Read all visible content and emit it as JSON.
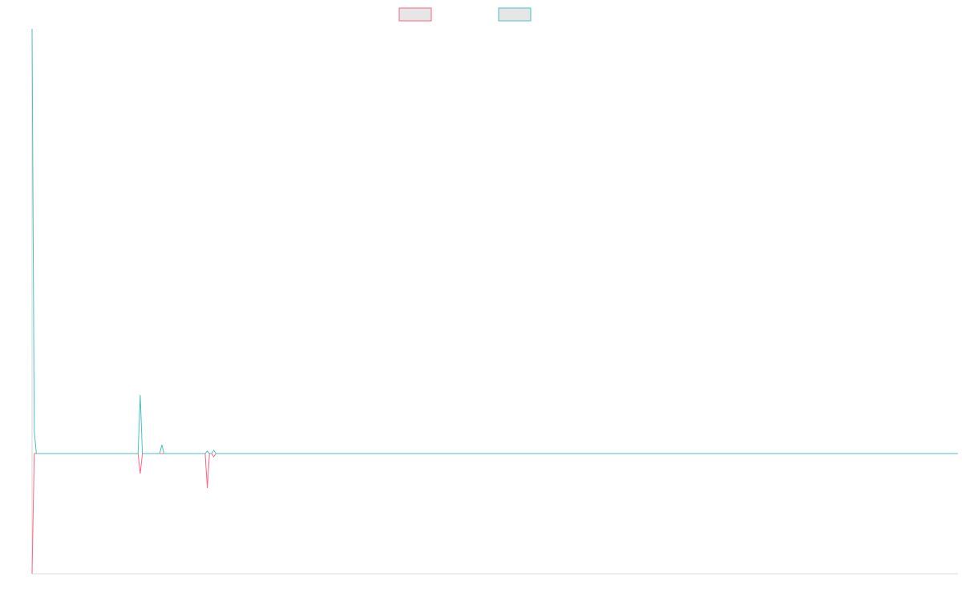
{
  "chart_data": {
    "type": "line",
    "x": [
      0,
      1,
      2,
      49,
      50,
      51,
      59,
      60,
      61,
      80,
      81,
      82,
      83,
      84,
      85,
      428
    ],
    "series": [
      {
        "color": "#ff6384",
        "values": [
          -150,
          0,
          0,
          0,
          -25,
          0,
          0,
          0,
          0,
          0,
          -43,
          0,
          0,
          -4,
          0,
          0
        ]
      },
      {
        "color": "#4bc0c0",
        "values": [
          530,
          28,
          0,
          0,
          73,
          0,
          0,
          11,
          0,
          0,
          3,
          0,
          0,
          4,
          0,
          0
        ]
      }
    ],
    "xlim": [
      0,
      428
    ],
    "ylim": [
      -150,
      530
    ],
    "legend": "top"
  }
}
